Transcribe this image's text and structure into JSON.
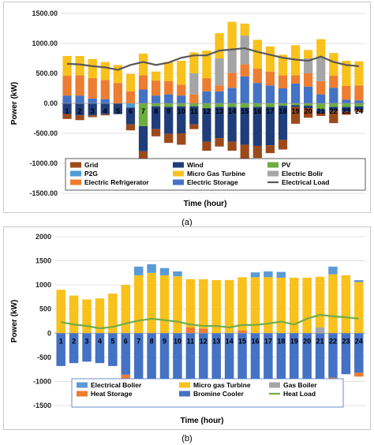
{
  "captions": {
    "a": "(a)",
    "b": "(b)"
  },
  "colors": {
    "Grid": "#9c4a1a",
    "Wind": "#1f3d7a",
    "PV": "#6cad3f",
    "P2G": "#4f9bd6",
    "Micro Gas Turbine": "#f9c11c",
    "Electric Bolir": "#a5a5a5",
    "Electric Refrigerator": "#ed7d31",
    "Electric Storage": "#4472c4",
    "Electrical Load": "#595959",
    "Electrical Bolier": "#5b9bd5",
    "Micro gas Turbine": "#f9c11c",
    "Gas Boiler": "#a5a5a5",
    "Heat Storage": "#ed7d31",
    "Bromine Cooler": "#4472c4",
    "Heat Load": "#70ad47"
  },
  "chart_data": [
    {
      "id": "a",
      "type": "bar",
      "stacked": true,
      "title": "",
      "xlabel": "Time (hour)",
      "ylabel": "Power (kW)",
      "ylim": [
        -1500,
        1500
      ],
      "yticks": [
        "1500.00",
        "1000.00",
        "500.00",
        "0.00",
        "-500.00",
        "-1000.00",
        "-1500.00"
      ],
      "ytick_values": [
        1500,
        1000,
        500,
        0,
        -500,
        -1000,
        -1500
      ],
      "categories": [
        "1",
        "2",
        "3",
        "4",
        "5",
        "6",
        "7",
        "8",
        "9",
        "10",
        "11",
        "12",
        "13",
        "14",
        "15",
        "16",
        "17",
        "18",
        "19",
        "20",
        "21",
        "22",
        "23",
        "24"
      ],
      "grid": true,
      "legend_position": "bottom-inside",
      "series": [
        {
          "name": "Electric Storage",
          "values": [
            130,
            130,
            80,
            70,
            0,
            0,
            230,
            130,
            150,
            130,
            0,
            200,
            200,
            260,
            450,
            340,
            300,
            250,
            330,
            280,
            150,
            260,
            60,
            50
          ]
        },
        {
          "name": "Electric Refrigerator",
          "values": [
            330,
            340,
            340,
            320,
            340,
            200,
            240,
            250,
            220,
            180,
            150,
            220,
            100,
            250,
            200,
            240,
            230,
            220,
            140,
            220,
            220,
            200,
            230,
            250
          ]
        },
        {
          "name": "Electric Bolir",
          "values": [
            0,
            0,
            0,
            0,
            0,
            0,
            0,
            0,
            0,
            0,
            350,
            0,
            450,
            400,
            480,
            0,
            0,
            0,
            0,
            250,
            400,
            0,
            0,
            0
          ]
        },
        {
          "name": "Micro Gas Turbine",
          "values": [
            330,
            320,
            320,
            300,
            300,
            290,
            360,
            150,
            320,
            400,
            350,
            460,
            420,
            450,
            200,
            480,
            420,
            340,
            500,
            140,
            300,
            380,
            420,
            400
          ]
        },
        {
          "name": "P2G",
          "values": [
            0,
            0,
            0,
            0,
            0,
            -70,
            0,
            0,
            0,
            0,
            0,
            0,
            0,
            0,
            0,
            0,
            0,
            0,
            0,
            0,
            0,
            0,
            0,
            0
          ]
        },
        {
          "name": "PV",
          "values": [
            0,
            0,
            0,
            0,
            0,
            0,
            -380,
            -50,
            -60,
            -50,
            -50,
            -80,
            -60,
            -60,
            -70,
            -60,
            -60,
            -40,
            -30,
            -40,
            -100,
            -60,
            -60,
            -50
          ]
        },
        {
          "name": "Wind",
          "values": [
            -180,
            -200,
            -200,
            -180,
            -180,
            -280,
            -420,
            -380,
            -450,
            -450,
            -300,
            -560,
            -520,
            -580,
            -620,
            -650,
            -640,
            -570,
            -30,
            -40,
            -60,
            -70,
            -80,
            -60
          ]
        },
        {
          "name": "Grid",
          "values": [
            -80,
            -80,
            -30,
            -20,
            0,
            -100,
            -200,
            -120,
            -150,
            -190,
            -80,
            -150,
            -140,
            -150,
            -300,
            -200,
            -130,
            -160,
            -280,
            -160,
            -50,
            -200,
            -50,
            -30
          ]
        }
      ],
      "line": {
        "name": "Electrical Load",
        "values": [
          660,
          650,
          620,
          600,
          560,
          640,
          690,
          640,
          680,
          760,
          800,
          800,
          880,
          900,
          920,
          860,
          810,
          760,
          730,
          710,
          780,
          690,
          640,
          620
        ]
      },
      "legend": [
        "Grid",
        "Wind",
        "PV",
        "P2G",
        "Micro Gas Turbine",
        "Electric Bolir",
        "Electric Refrigerator",
        "Electric Storage",
        "Electrical Load"
      ]
    },
    {
      "id": "b",
      "type": "bar",
      "stacked": true,
      "title": "",
      "xlabel": "Time (hour)",
      "ylabel": "Power (kW)",
      "ylim": [
        -1500,
        2000
      ],
      "yticks": [
        "2000",
        "1500",
        "1000",
        "500",
        "0",
        "-500",
        "-1000",
        "-1500"
      ],
      "ytick_values": [
        2000,
        1500,
        1000,
        500,
        0,
        -500,
        -1000,
        -1500
      ],
      "categories": [
        "1",
        "2",
        "3",
        "4",
        "5",
        "6",
        "7",
        "8",
        "9",
        "10",
        "11",
        "12",
        "13",
        "14",
        "15",
        "16",
        "17",
        "18",
        "19",
        "20",
        "21",
        "22",
        "23",
        "24"
      ],
      "grid": true,
      "legend_position": "bottom-inside",
      "series": [
        {
          "name": "Heat Storage",
          "values": [
            0,
            0,
            0,
            0,
            0,
            0,
            0,
            0,
            0,
            0,
            120,
            100,
            0,
            0,
            60,
            0,
            0,
            0,
            0,
            0,
            0,
            0,
            0,
            0
          ]
        },
        {
          "name": "Gas Boiler",
          "values": [
            0,
            0,
            0,
            0,
            0,
            0,
            0,
            0,
            0,
            0,
            0,
            0,
            0,
            0,
            0,
            0,
            0,
            0,
            0,
            0,
            120,
            0,
            0,
            0
          ]
        },
        {
          "name": "Micro gas Turbine",
          "values": [
            900,
            780,
            700,
            720,
            820,
            1000,
            1200,
            1250,
            1200,
            1180,
            1000,
            1020,
            1100,
            1100,
            1100,
            1160,
            1160,
            1150,
            1150,
            1150,
            1050,
            1220,
            1200,
            1060
          ]
        },
        {
          "name": "Electrical Bolier",
          "values": [
            0,
            0,
            0,
            0,
            0,
            0,
            180,
            180,
            150,
            100,
            0,
            0,
            0,
            0,
            0,
            100,
            120,
            120,
            0,
            0,
            0,
            160,
            0,
            40
          ]
        },
        {
          "name": "Bromine Cooler",
          "values": [
            -680,
            -620,
            -590,
            -620,
            -680,
            -860,
            -1000,
            -1000,
            -1000,
            -1000,
            -1000,
            -1000,
            -1000,
            -1000,
            -1000,
            -1000,
            -1000,
            -1000,
            -1000,
            -1000,
            -1000,
            -920,
            -850,
            -820
          ]
        },
        {
          "name": "Heat Storage (discharge)",
          "values": [
            0,
            0,
            0,
            0,
            0,
            -80,
            0,
            0,
            0,
            0,
            0,
            0,
            0,
            0,
            0,
            0,
            0,
            0,
            0,
            0,
            0,
            -60,
            0,
            -80
          ]
        }
      ],
      "line": {
        "name": "Heat Load",
        "values": [
          230,
          180,
          150,
          100,
          130,
          200,
          260,
          300,
          270,
          240,
          180,
          150,
          150,
          120,
          170,
          170,
          200,
          240,
          180,
          300,
          380,
          350,
          330,
          300
        ]
      },
      "legend": [
        "Electrical Bolier",
        "Micro gas Turbine",
        "Gas Boiler",
        "Heat Storage",
        "Bromine Cooler",
        "Heat Load"
      ]
    }
  ]
}
